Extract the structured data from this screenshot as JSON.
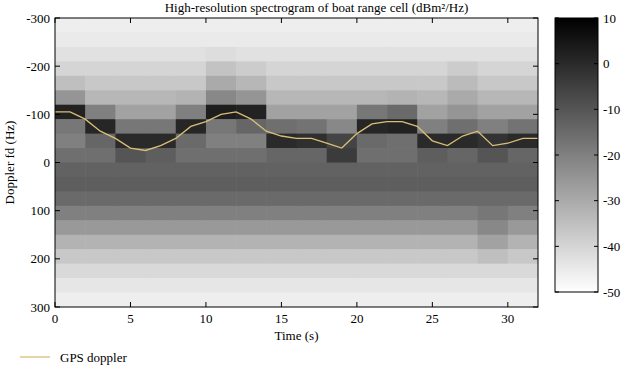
{
  "chart_data": {
    "type": "spectrogram",
    "title": "High-resolution spectrogram of boat range cell (dBm²/Hz)",
    "x_label": "Time (s)",
    "y_label": "Doppler fd (Hz)",
    "xlim": [
      0,
      32
    ],
    "ylim": [
      300,
      -300
    ],
    "xticks": [
      0,
      5,
      10,
      15,
      20,
      25,
      30
    ],
    "yticks": [
      -300,
      -200,
      -100,
      0,
      100,
      200,
      300
    ],
    "legend": "bottom",
    "x": [
      0,
      1,
      2,
      3,
      4,
      5,
      6,
      7,
      8,
      9,
      10,
      11,
      12,
      13,
      14,
      15,
      16,
      17,
      18,
      19,
      20,
      21,
      22,
      23,
      24,
      25,
      26,
      27,
      28,
      29,
      30,
      31,
      32
    ],
    "series": [
      {
        "name": "GPS doppler",
        "color": "#d9bf77",
        "type": "line",
        "values": [
          -105,
          -105,
          -90,
          -65,
          -50,
          -30,
          -25,
          -35,
          -50,
          -75,
          -85,
          -100,
          -105,
          -90,
          -65,
          -55,
          -50,
          -50,
          -40,
          -30,
          -60,
          -80,
          -85,
          -85,
          -75,
          -45,
          -35,
          -55,
          -65,
          -35,
          -40,
          -50,
          -50
        ]
      }
    ],
    "time_edges": [
      0,
      2,
      4,
      6,
      8,
      10,
      12,
      14,
      16,
      18,
      20,
      22,
      24,
      26,
      28,
      30,
      32
    ],
    "doppler_edges": [
      -300,
      -270,
      -240,
      -210,
      -180,
      -150,
      -120,
      -90,
      -60,
      -30,
      0,
      30,
      60,
      90,
      120,
      150,
      180,
      210,
      240,
      270,
      300
    ],
    "cells": [
      [
        -46,
        -45,
        -43,
        -40,
        -35,
        -25,
        2,
        -18,
        -20,
        -16,
        -13,
        -12,
        -15,
        -20,
        -26,
        -32,
        -37,
        -41,
        -44,
        -46
      ],
      [
        -46,
        -45,
        -43,
        -40,
        -37,
        -33,
        -20,
        1,
        -14,
        -16,
        -13,
        -12,
        -15,
        -20,
        -26,
        -32,
        -37,
        -41,
        -44,
        -46
      ],
      [
        -46,
        -45,
        -43,
        -40,
        -37,
        -33,
        -28,
        -18,
        0,
        -10,
        -13,
        -12,
        -15,
        -20,
        -26,
        -32,
        -37,
        -41,
        -44,
        -46
      ],
      [
        -46,
        -45,
        -43,
        -40,
        -37,
        -33,
        -28,
        -18,
        0,
        -12,
        -13,
        -12,
        -15,
        -20,
        -26,
        -32,
        -37,
        -41,
        -44,
        -46
      ],
      [
        -46,
        -45,
        -43,
        -40,
        -37,
        -32,
        -20,
        1,
        -15,
        -16,
        -13,
        -12,
        -15,
        -20,
        -26,
        -32,
        -37,
        -41,
        -44,
        -46
      ],
      [
        -46,
        -45,
        -42,
        -36,
        -30,
        -22,
        3,
        -18,
        -20,
        -16,
        -13,
        -12,
        -15,
        -20,
        -26,
        -32,
        -37,
        -41,
        -44,
        -46
      ],
      [
        -46,
        -45,
        -43,
        -38,
        -33,
        -25,
        2,
        -14,
        -20,
        -16,
        -13,
        -12,
        -15,
        -20,
        -26,
        -32,
        -37,
        -41,
        -44,
        -46
      ],
      [
        -46,
        -45,
        -43,
        -40,
        -37,
        -33,
        -28,
        -16,
        0,
        -14,
        -13,
        -12,
        -15,
        -20,
        -26,
        -32,
        -37,
        -41,
        -44,
        -46
      ],
      [
        -46,
        -45,
        -43,
        -40,
        -37,
        -33,
        -28,
        -17,
        -1,
        -14,
        -13,
        -12,
        -15,
        -20,
        -26,
        -32,
        -37,
        -41,
        -44,
        -46
      ],
      [
        -46,
        -45,
        -43,
        -40,
        -37,
        -33,
        -28,
        -22,
        -6,
        -4,
        -13,
        -12,
        -15,
        -20,
        -26,
        -32,
        -37,
        -41,
        -44,
        -46
      ],
      [
        -46,
        -45,
        -43,
        -40,
        -37,
        -33,
        -18,
        1,
        -15,
        -16,
        -13,
        -12,
        -15,
        -20,
        -26,
        -32,
        -37,
        -41,
        -44,
        -46
      ],
      [
        -46,
        -45,
        -43,
        -40,
        -37,
        -32,
        -15,
        2,
        -16,
        -16,
        -13,
        -12,
        -15,
        -20,
        -26,
        -32,
        -37,
        -41,
        -44,
        -46
      ],
      [
        -46,
        -45,
        -43,
        -40,
        -37,
        -33,
        -28,
        -20,
        0,
        -12,
        -13,
        -12,
        -15,
        -20,
        -26,
        -32,
        -37,
        -41,
        -44,
        -46
      ],
      [
        -46,
        -45,
        -43,
        -38,
        -34,
        -30,
        -25,
        -16,
        0,
        -14,
        -13,
        -12,
        -15,
        -20,
        -26,
        -32,
        -37,
        -41,
        -44,
        -46
      ],
      [
        -46,
        -45,
        -43,
        -40,
        -37,
        -33,
        -28,
        -20,
        -2,
        -10,
        -13,
        -12,
        -15,
        -18,
        -22,
        -28,
        -35,
        -41,
        -44,
        -46
      ],
      [
        -46,
        -45,
        -43,
        -40,
        -37,
        -33,
        -28,
        -17,
        0,
        -14,
        -13,
        -12,
        -15,
        -20,
        -26,
        -32,
        -37,
        -41,
        -44,
        -46
      ]
    ],
    "color_range": [
      -50,
      10
    ],
    "color_ticks": [
      10,
      0,
      -10,
      -20,
      -30,
      -40,
      -50
    ]
  }
}
